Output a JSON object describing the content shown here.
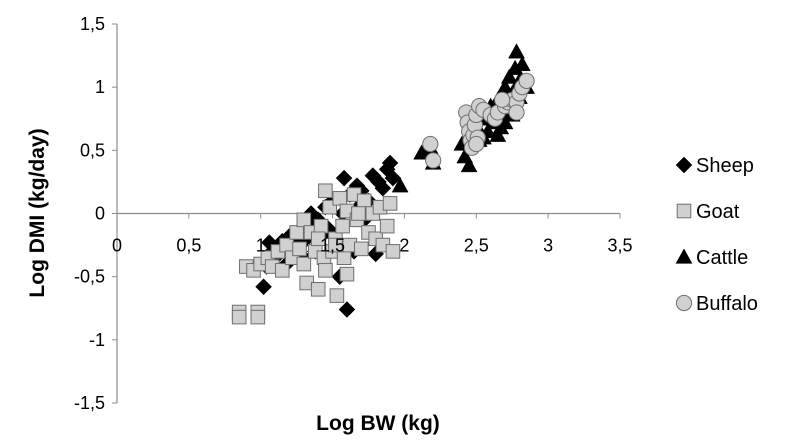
{
  "chart_data": {
    "type": "scatter",
    "xlabel": "Log BW (kg)",
    "ylabel": "Log DMI (kg/day)",
    "xlim": [
      0,
      3.5
    ],
    "ylim": [
      -1.5,
      1.5
    ],
    "x_ticks": [
      "0",
      "0,5",
      "1",
      "1,5",
      "2",
      "2,5",
      "3",
      "3,5"
    ],
    "y_ticks": [
      "1,5",
      "1",
      "0,5",
      "0",
      "-0,5",
      "-1",
      "-1,5"
    ],
    "grid": false,
    "legend_position": "right",
    "series": [
      {
        "name": "Sheep",
        "marker": "diamond",
        "color": "#000000",
        "points": [
          [
            1.02,
            -0.58
          ],
          [
            1.04,
            -0.42
          ],
          [
            1.06,
            -0.23
          ],
          [
            1.08,
            -0.3
          ],
          [
            1.1,
            -0.35
          ],
          [
            1.12,
            -0.28
          ],
          [
            1.15,
            -0.22
          ],
          [
            1.18,
            -0.4
          ],
          [
            1.2,
            -0.18
          ],
          [
            1.23,
            -0.3
          ],
          [
            1.25,
            -0.25
          ],
          [
            1.28,
            -0.12
          ],
          [
            1.3,
            -0.35
          ],
          [
            1.32,
            -0.2
          ],
          [
            1.35,
            -0.1
          ],
          [
            1.38,
            -0.3
          ],
          [
            1.4,
            -0.05
          ],
          [
            1.42,
            -0.18
          ],
          [
            1.45,
            0.05
          ],
          [
            1.47,
            -0.12
          ],
          [
            1.5,
            0.1
          ],
          [
            1.52,
            -0.25
          ],
          [
            1.55,
            -0.5
          ],
          [
            1.57,
            0.0
          ],
          [
            1.6,
            -0.76
          ],
          [
            1.62,
            0.15
          ],
          [
            1.65,
            -0.3
          ],
          [
            1.67,
            0.22
          ],
          [
            1.7,
            0.18
          ],
          [
            1.72,
            -0.05
          ],
          [
            1.75,
            0.1
          ],
          [
            1.78,
            0.3
          ],
          [
            1.8,
            -0.32
          ],
          [
            1.82,
            0.25
          ],
          [
            1.85,
            0.2
          ],
          [
            1.88,
            0.35
          ],
          [
            1.9,
            0.4
          ],
          [
            1.92,
            0.28
          ],
          [
            1.58,
            0.28
          ],
          [
            1.48,
            -0.15
          ],
          [
            1.35,
            0.0
          ],
          [
            1.68,
            0.05
          ]
        ]
      },
      {
        "name": "Goat",
        "marker": "square",
        "color": "#d0d0d0",
        "points": [
          [
            0.85,
            -0.78
          ],
          [
            0.85,
            -0.82
          ],
          [
            0.98,
            -0.78
          ],
          [
            0.98,
            -0.82
          ],
          [
            0.9,
            -0.42
          ],
          [
            0.95,
            -0.45
          ],
          [
            1.0,
            -0.4
          ],
          [
            1.05,
            -0.35
          ],
          [
            1.08,
            -0.42
          ],
          [
            1.12,
            -0.3
          ],
          [
            1.15,
            -0.45
          ],
          [
            1.18,
            -0.25
          ],
          [
            1.22,
            -0.35
          ],
          [
            1.25,
            -0.15
          ],
          [
            1.27,
            -0.28
          ],
          [
            1.3,
            -0.05
          ],
          [
            1.3,
            -0.4
          ],
          [
            1.32,
            -0.55
          ],
          [
            1.35,
            -0.15
          ],
          [
            1.38,
            -0.3
          ],
          [
            1.4,
            -0.6
          ],
          [
            1.42,
            -0.1
          ],
          [
            1.44,
            -0.35
          ],
          [
            1.45,
            -0.45
          ],
          [
            1.48,
            0.05
          ],
          [
            1.5,
            -0.3
          ],
          [
            1.52,
            -0.2
          ],
          [
            1.53,
            -0.65
          ],
          [
            1.55,
            0.12
          ],
          [
            1.57,
            -0.1
          ],
          [
            1.58,
            -0.35
          ],
          [
            1.6,
            0.02
          ],
          [
            1.62,
            -0.25
          ],
          [
            1.65,
            0.15
          ],
          [
            1.67,
            -0.05
          ],
          [
            1.7,
            -0.28
          ],
          [
            1.72,
            0.1
          ],
          [
            1.75,
            -0.15
          ],
          [
            1.78,
            0.0
          ],
          [
            1.8,
            -0.2
          ],
          [
            1.83,
            0.05
          ],
          [
            1.85,
            -0.25
          ],
          [
            1.88,
            -0.1
          ],
          [
            1.9,
            0.08
          ],
          [
            1.92,
            -0.3
          ],
          [
            1.6,
            -0.48
          ],
          [
            1.45,
            0.18
          ],
          [
            1.52,
            -0.25
          ],
          [
            1.68,
            0.0
          ],
          [
            1.4,
            -0.2
          ]
        ]
      },
      {
        "name": "Cattle",
        "marker": "triangle",
        "color": "#000000",
        "points": [
          [
            1.97,
            0.22
          ],
          [
            2.12,
            0.48
          ],
          [
            2.18,
            0.52
          ],
          [
            2.2,
            0.4
          ],
          [
            2.4,
            0.55
          ],
          [
            2.42,
            0.45
          ],
          [
            2.45,
            0.38
          ],
          [
            2.48,
            0.62
          ],
          [
            2.5,
            0.7
          ],
          [
            2.52,
            0.58
          ],
          [
            2.55,
            0.75
          ],
          [
            2.58,
            0.65
          ],
          [
            2.6,
            0.85
          ],
          [
            2.62,
            0.72
          ],
          [
            2.63,
            0.8
          ],
          [
            2.65,
            0.9
          ],
          [
            2.67,
            0.68
          ],
          [
            2.7,
            1.0
          ],
          [
            2.72,
            0.88
          ],
          [
            2.73,
            1.08
          ],
          [
            2.75,
            0.95
          ],
          [
            2.77,
            1.15
          ],
          [
            2.78,
            1.28
          ],
          [
            2.8,
            1.05
          ],
          [
            2.82,
            1.18
          ],
          [
            2.85,
            1.0
          ],
          [
            2.7,
            0.72
          ],
          [
            2.75,
            0.78
          ],
          [
            2.65,
            0.62
          ],
          [
            2.55,
            0.6
          ],
          [
            2.8,
            0.92
          ],
          [
            2.68,
            0.8
          ]
        ]
      },
      {
        "name": "Buffalo",
        "marker": "circle",
        "color": "#d0d0d0",
        "points": [
          [
            2.18,
            0.55
          ],
          [
            2.2,
            0.42
          ],
          [
            2.43,
            0.8
          ],
          [
            2.44,
            0.72
          ],
          [
            2.45,
            0.65
          ],
          [
            2.46,
            0.58
          ],
          [
            2.47,
            0.52
          ],
          [
            2.48,
            0.62
          ],
          [
            2.49,
            0.7
          ],
          [
            2.5,
            0.78
          ],
          [
            2.51,
            0.6
          ],
          [
            2.52,
            0.85
          ],
          [
            2.55,
            0.82
          ],
          [
            2.6,
            0.78
          ],
          [
            2.63,
            0.75
          ],
          [
            2.65,
            0.8
          ],
          [
            2.7,
            0.85
          ],
          [
            2.72,
            0.88
          ],
          [
            2.75,
            0.9
          ],
          [
            2.78,
            0.88
          ],
          [
            2.8,
            0.95
          ],
          [
            2.82,
            1.0
          ],
          [
            2.85,
            1.05
          ],
          [
            2.78,
            0.8
          ],
          [
            2.68,
            0.9
          ],
          [
            2.5,
            0.55
          ]
        ]
      }
    ]
  }
}
